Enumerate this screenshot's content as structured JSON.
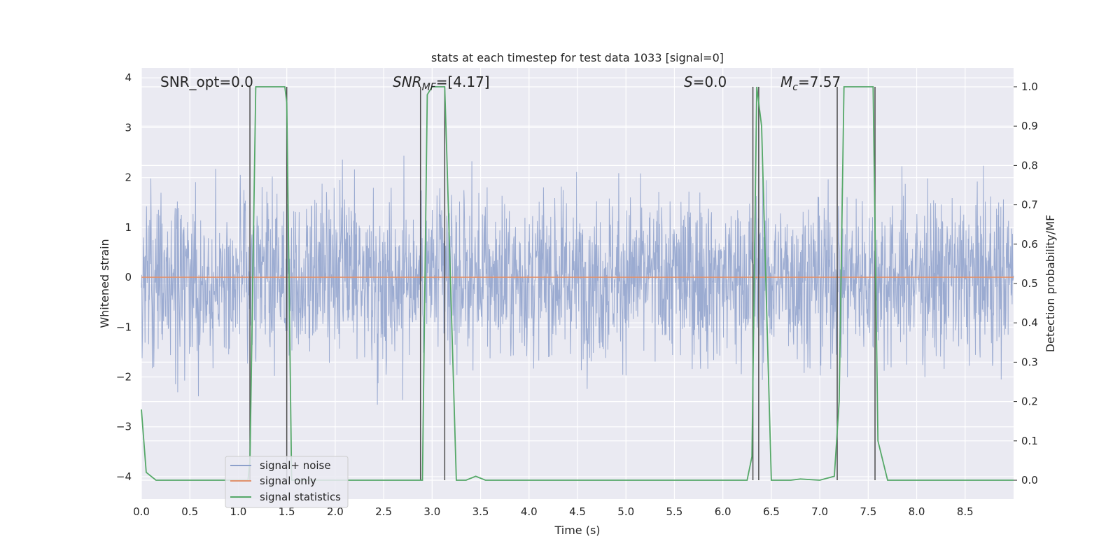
{
  "chart_data": {
    "type": "line",
    "title": "stats at each timestep for test data 1033 [signal=0]",
    "xlabel": "Time (s)",
    "ylabel": "Whitened strain",
    "y2label": "Detection probability/MF",
    "xlim": [
      0.0,
      9.0
    ],
    "ylim": [
      -4.45,
      4.2
    ],
    "y2lim": [
      -0.048,
      1.048
    ],
    "xticks": [
      0.0,
      0.5,
      1.0,
      1.5,
      2.0,
      2.5,
      3.0,
      3.5,
      4.0,
      4.5,
      5.0,
      5.5,
      6.0,
      6.5,
      7.0,
      7.5,
      8.0,
      8.5
    ],
    "xtick_labels": [
      "0.0",
      "0.5",
      "1.0",
      "1.5",
      "2.0",
      "2.5",
      "3.0",
      "3.5",
      "4.0",
      "4.5",
      "5.0",
      "5.5",
      "6.0",
      "6.5",
      "7.0",
      "7.5",
      "8.0",
      "8.5"
    ],
    "yticks": [
      -4,
      -3,
      -2,
      -1,
      0,
      1,
      2,
      3,
      4
    ],
    "ytick_labels": [
      "−4",
      "−3",
      "−2",
      "−1",
      "0",
      "1",
      "2",
      "3",
      "4"
    ],
    "y2ticks": [
      0.0,
      0.1,
      0.2,
      0.3,
      0.4,
      0.5,
      0.6,
      0.7,
      0.8,
      0.9,
      1.0
    ],
    "y2tick_labels": [
      "0.0",
      "0.1",
      "0.2",
      "0.3",
      "0.4",
      "0.5",
      "0.6",
      "0.7",
      "0.8",
      "0.9",
      "1.0"
    ],
    "grid": true,
    "legend_position": "lower-left",
    "annotations": {
      "snr_opt": "SNR_opt=0.0",
      "snr_mf_main": "SNR",
      "snr_mf_sub": "MF",
      "snr_mf_value": "=[4.17]",
      "s_main": "S",
      "s_value": "=0.0",
      "mc_main": "M",
      "mc_sub": "c",
      "mc_value": "=7.57"
    },
    "series": [
      {
        "name": "signal+ noise",
        "color": "#8da0cb",
        "axis": "left",
        "style": "dense-noise",
        "x_range": [
          0.0,
          9.0
        ],
        "envelope_p95": [
          -1.7,
          1.6
        ],
        "extremes": [
          -3.4,
          3.25
        ]
      },
      {
        "name": "signal only",
        "color": "#e1926d",
        "axis": "left",
        "x": [
          0.0,
          9.0
        ],
        "y": [
          0.0,
          0.0
        ]
      },
      {
        "name": "signal statistics",
        "color": "#55a868",
        "axis": "right",
        "x": [
          0.0,
          0.05,
          0.15,
          1.1,
          1.12,
          1.18,
          1.48,
          1.5,
          1.55,
          2.9,
          2.95,
          3.0,
          3.13,
          3.15,
          3.25,
          3.3,
          3.35,
          3.45,
          3.55,
          6.25,
          6.3,
          6.35,
          6.4,
          6.5,
          6.7,
          6.8,
          7.0,
          7.15,
          7.2,
          7.25,
          7.55,
          7.6,
          7.7,
          9.0
        ],
        "y": [
          0.18,
          0.02,
          0.0,
          0.0,
          0.05,
          1.0,
          1.0,
          0.96,
          0.0,
          0.0,
          0.98,
          1.0,
          1.0,
          0.84,
          0.0,
          0.0,
          0.0,
          0.01,
          0.0,
          0.0,
          0.06,
          1.0,
          0.9,
          0.0,
          0.0,
          0.003,
          0.0,
          0.01,
          0.2,
          1.0,
          1.0,
          0.1,
          0.0,
          0.0
        ]
      }
    ],
    "vertical_markers": {
      "color": "#4d4d4d",
      "axis": "right",
      "x": [
        1.12,
        1.5,
        2.88,
        3.13,
        6.31,
        6.37,
        7.18,
        7.57
      ],
      "ymax": 1.0
    }
  }
}
